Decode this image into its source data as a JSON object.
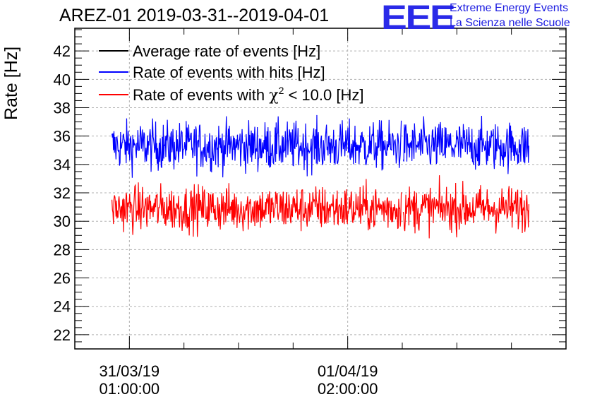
{
  "header": {
    "title": "AREZ-01 2019-03-31--2019-04-01",
    "logo_text": "EEE",
    "logo_line1": "Extreme Energy Events",
    "logo_line2": "La Scienza nelle Scuole"
  },
  "colors": {
    "average": "#000000",
    "hits": "#0000ff",
    "chi2": "#ff0000",
    "grid": "#b0b0b0"
  },
  "chart_data": {
    "type": "line",
    "title": "AREZ-01 2019-03-31--2019-04-01",
    "ylabel": "Rate [Hz]",
    "xlabel": "",
    "ylim": [
      21,
      43.6
    ],
    "y_ticks": [
      22,
      24,
      26,
      28,
      30,
      32,
      34,
      36,
      38,
      40,
      42
    ],
    "x_range_hours": [
      -0.25,
      2.0
    ],
    "x_ticks": [
      {
        "hour": 0,
        "date": "31/03/19",
        "time": "01:00:00"
      },
      {
        "hour": 1,
        "date": "01/04/19",
        "time": "02:00:00"
      }
    ],
    "grid": true,
    "legend_position": "top-left",
    "legend": [
      {
        "label": "Average rate of events [Hz]",
        "series": "average"
      },
      {
        "label": "Rate of events with hits [Hz]",
        "series": "hits"
      },
      {
        "label_prefix": "Rate of events with ",
        "label_symbol": "χ",
        "label_sup": "2",
        "label_suffix": " < 10.0 [Hz]",
        "series": "chi2"
      }
    ],
    "series": [
      {
        "key": "hits",
        "x_start_hour": -0.08,
        "x_end_hour": 1.83,
        "mean": 35.3,
        "spread": 0.85,
        "gap_at_hour": 1.25
      },
      {
        "key": "chi2",
        "x_start_hour": -0.08,
        "x_end_hour": 1.83,
        "mean": 30.9,
        "spread": 0.8,
        "gap_at_hour": 1.25
      }
    ]
  }
}
